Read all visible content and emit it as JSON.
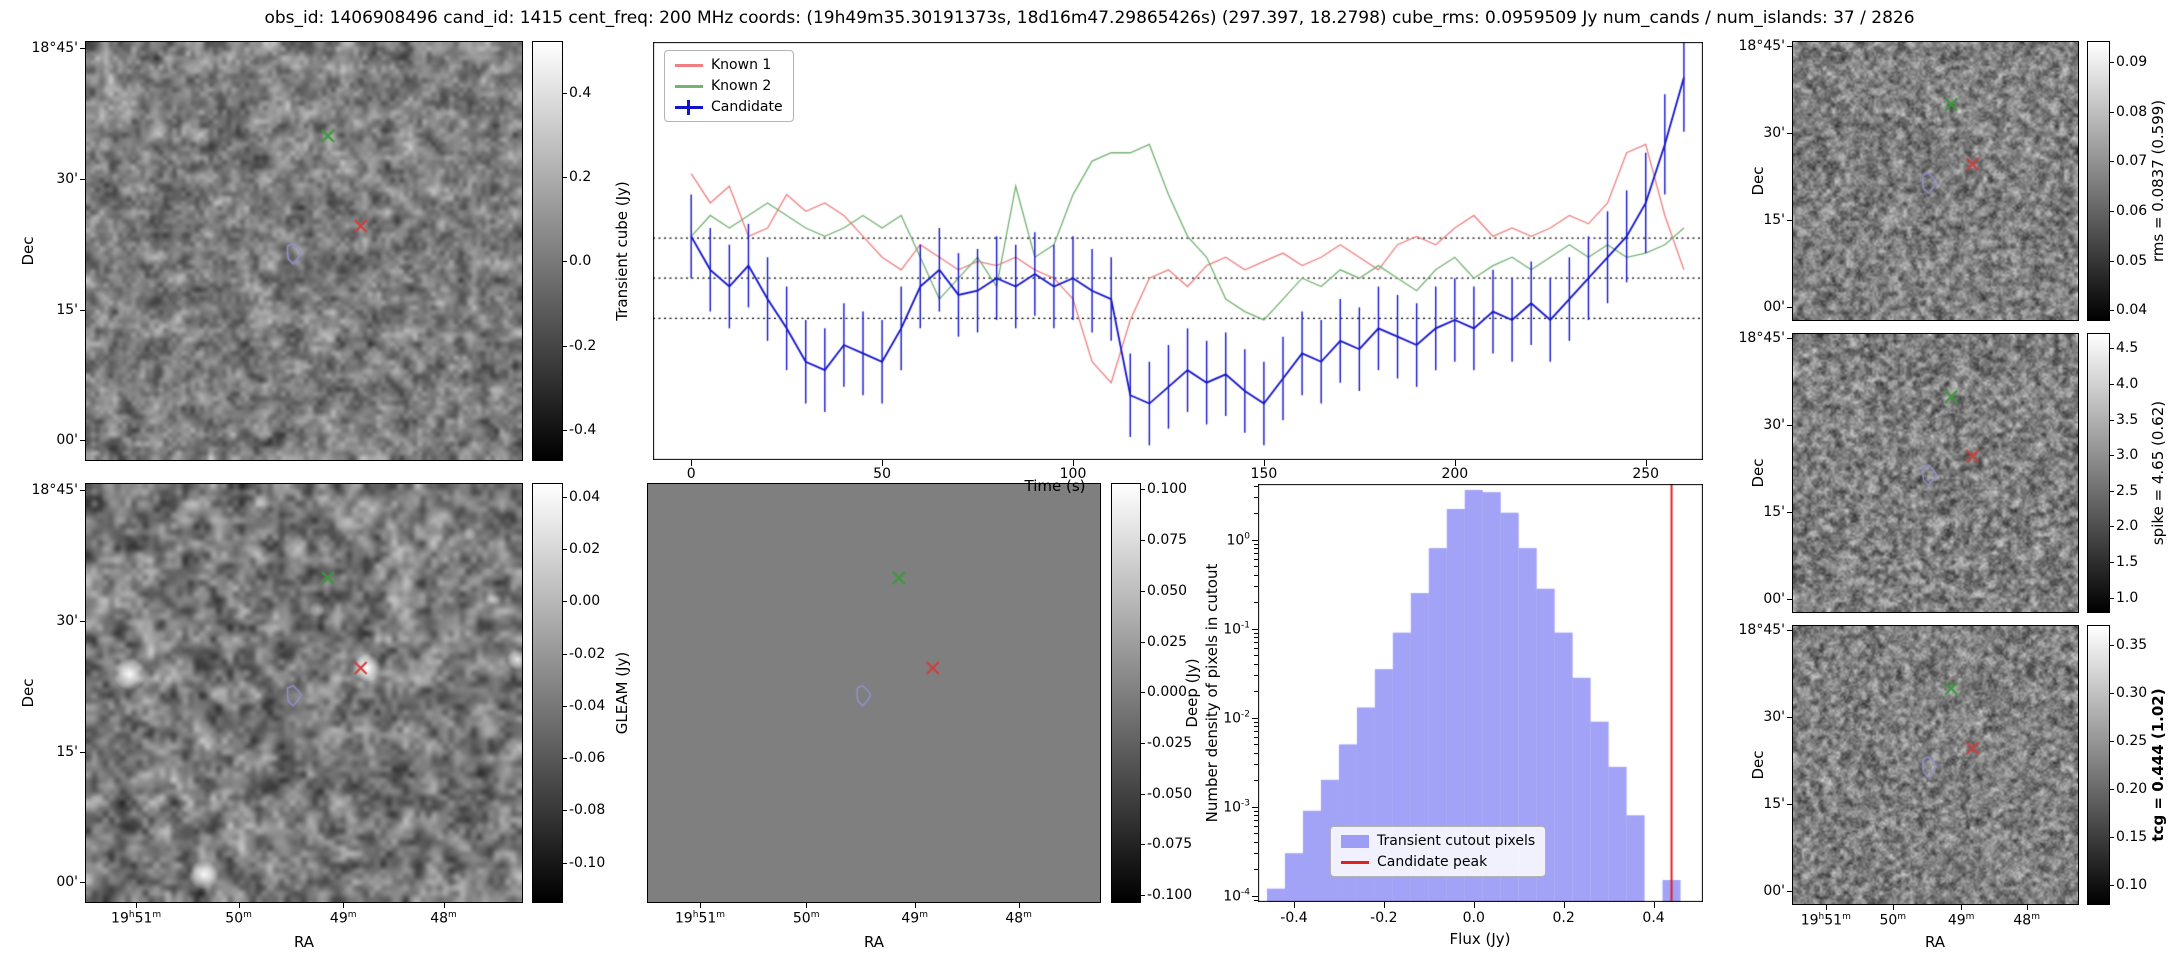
{
  "title": "obs_id: 1406908496 cand_id: 1415 cent_freq: 200 MHz coords: (19h49m35.30191373s, 18d16m47.29865426s) (297.397, 18.2798) cube_rms: 0.0959509 Jy num_cands / num_islands: 37 / 2826",
  "colors": {
    "known1": "#f08080",
    "known2": "#74b374",
    "candidate": "#1414cc",
    "histogram_fill": "#6969f0",
    "candidate_peak_line": "#e02020",
    "marker_green": "#3a9a3a",
    "marker_red": "#d43c3c",
    "contour_blue": "#9090cf"
  },
  "axes": {
    "dec_label": "Dec",
    "ra_label": "RA",
    "dec_ticks": [
      "18°45'",
      "30'",
      "15'",
      "00'"
    ],
    "ra_ticks": [
      "19h51m",
      "50m",
      "49m",
      "48m"
    ]
  },
  "markers": {
    "green_x": [
      0.555,
      0.225
    ],
    "red_x": [
      0.63,
      0.44
    ],
    "contour": [
      0.475,
      0.505
    ]
  },
  "panels": {
    "transient_cube": {
      "colorbar_label": "Transient cube (Jy)",
      "colorbar_ticks": [
        "0.4",
        "0.2",
        "0.0",
        "-0.2",
        "-0.4"
      ]
    },
    "gleam": {
      "colorbar_label": "GLEAM (Jy)",
      "colorbar_ticks": [
        "0.04",
        "0.02",
        "0.00",
        "-0.02",
        "-0.04",
        "-0.06",
        "-0.08",
        "-0.10"
      ]
    },
    "deep": {
      "colorbar_label": "Deep (Jy)",
      "colorbar_ticks": [
        "0.100",
        "0.075",
        "0.050",
        "0.025",
        "0.000",
        "-0.025",
        "-0.050",
        "-0.075",
        "-0.100"
      ]
    },
    "rms": {
      "colorbar_label": "rms = 0.0837 (0.599)",
      "colorbar_ticks": [
        "0.09",
        "0.08",
        "0.07",
        "0.06",
        "0.05",
        "0.04"
      ]
    },
    "spike": {
      "colorbar_label": "spike = 4.65 (0.62)",
      "colorbar_ticks": [
        "4.5",
        "4.0",
        "3.5",
        "3.0",
        "2.5",
        "2.0",
        "1.5",
        "1.0"
      ]
    },
    "tcg": {
      "colorbar_label": "tcg = 0.444 (1.02)",
      "colorbar_ticks": [
        "0.35",
        "0.30",
        "0.25",
        "0.20",
        "0.15",
        "0.10"
      ],
      "bold": true
    }
  },
  "chart_data": [
    {
      "type": "line",
      "title": "",
      "xlabel": "Time (s)",
      "ylabel": "",
      "xlim": [
        -10,
        265
      ],
      "ylim": [
        -0.435,
        0.565
      ],
      "x_ticks": [
        0,
        50,
        100,
        150,
        200,
        250
      ],
      "threshold_lines": [
        0.0959509,
        0,
        -0.0959509
      ],
      "legend_position": "upper left",
      "x": [
        0,
        5,
        10,
        15,
        20,
        25,
        30,
        35,
        40,
        45,
        50,
        55,
        60,
        65,
        70,
        75,
        80,
        85,
        90,
        95,
        100,
        105,
        110,
        115,
        120,
        125,
        130,
        135,
        140,
        145,
        150,
        155,
        160,
        165,
        170,
        175,
        180,
        185,
        190,
        195,
        200,
        205,
        210,
        215,
        220,
        225,
        230,
        235,
        240,
        245,
        250,
        255,
        260
      ],
      "series": [
        {
          "name": "Known 1",
          "color_key": "known1",
          "values": [
            0.25,
            0.18,
            0.22,
            0.1,
            0.12,
            0.2,
            0.16,
            0.18,
            0.15,
            0.1,
            0.05,
            0.02,
            0.08,
            0.05,
            0.02,
            0.04,
            0.03,
            0.05,
            0.02,
            0.0,
            -0.05,
            -0.2,
            -0.25,
            -0.1,
            0.0,
            0.02,
            -0.02,
            0.03,
            0.05,
            0.02,
            0.04,
            0.06,
            0.03,
            0.05,
            0.08,
            0.05,
            0.02,
            0.08,
            0.1,
            0.08,
            0.12,
            0.15,
            0.1,
            0.12,
            0.1,
            0.12,
            0.15,
            0.13,
            0.18,
            0.3,
            0.32,
            0.15,
            0.02
          ]
        },
        {
          "name": "Known 2",
          "color_key": "known2",
          "values": [
            0.1,
            0.15,
            0.12,
            0.15,
            0.18,
            0.15,
            0.12,
            0.1,
            0.12,
            0.15,
            0.12,
            0.15,
            0.05,
            -0.05,
            0.0,
            0.05,
            -0.02,
            0.22,
            0.05,
            0.08,
            0.2,
            0.28,
            0.3,
            0.3,
            0.32,
            0.2,
            0.1,
            0.05,
            -0.05,
            -0.08,
            -0.1,
            -0.05,
            0.0,
            -0.02,
            0.02,
            0.0,
            0.03,
            0.0,
            -0.03,
            0.02,
            0.05,
            0.0,
            0.03,
            0.05,
            0.02,
            0.05,
            0.08,
            0.05,
            0.08,
            0.05,
            0.06,
            0.08,
            0.12
          ]
        },
        {
          "name": "Candidate",
          "color_key": "candidate",
          "values": [
            0.1,
            0.02,
            -0.02,
            0.03,
            -0.05,
            -0.12,
            -0.2,
            -0.22,
            -0.16,
            -0.18,
            -0.2,
            -0.12,
            -0.02,
            0.02,
            -0.04,
            -0.03,
            0.0,
            -0.02,
            0.01,
            -0.02,
            0.0,
            -0.03,
            -0.05,
            -0.28,
            -0.3,
            -0.26,
            -0.22,
            -0.25,
            -0.23,
            -0.27,
            -0.3,
            -0.24,
            -0.18,
            -0.2,
            -0.15,
            -0.17,
            -0.12,
            -0.14,
            -0.16,
            -0.12,
            -0.1,
            -0.12,
            -0.08,
            -0.1,
            -0.06,
            -0.1,
            -0.05,
            0.0,
            0.05,
            0.1,
            0.18,
            0.32,
            0.48
          ],
          "errors": [
            0.1,
            0.1,
            0.1,
            0.1,
            0.1,
            0.1,
            0.1,
            0.1,
            0.1,
            0.1,
            0.1,
            0.1,
            0.1,
            0.1,
            0.1,
            0.1,
            0.1,
            0.1,
            0.1,
            0.1,
            0.1,
            0.1,
            0.1,
            0.1,
            0.1,
            0.1,
            0.1,
            0.1,
            0.1,
            0.1,
            0.1,
            0.1,
            0.1,
            0.1,
            0.1,
            0.1,
            0.1,
            0.1,
            0.1,
            0.1,
            0.1,
            0.1,
            0.1,
            0.1,
            0.1,
            0.1,
            0.1,
            0.1,
            0.11,
            0.11,
            0.12,
            0.12,
            0.13
          ]
        }
      ]
    },
    {
      "type": "bar",
      "yscale": "log",
      "xlabel": "Flux (Jy)",
      "ylabel": "Number density of pixels in cutout",
      "xlim": [
        -0.48,
        0.51
      ],
      "ylim": [
        8.5e-05,
        4.2
      ],
      "x_ticks": [
        "-0.4",
        "-0.2",
        "0.0",
        "0.2",
        "0.4"
      ],
      "y_tick_exponents": [
        0,
        -1,
        -2,
        -3,
        -4
      ],
      "bin_width": 0.04,
      "bin_centers": [
        -0.44,
        -0.4,
        -0.36,
        -0.32,
        -0.28,
        -0.24,
        -0.2,
        -0.16,
        -0.12,
        -0.08,
        -0.04,
        0.0,
        0.04,
        0.08,
        0.12,
        0.16,
        0.2,
        0.24,
        0.28,
        0.32,
        0.36,
        0.4,
        0.44
      ],
      "values": [
        0.00012,
        0.0003,
        0.0009,
        0.002,
        0.005,
        0.013,
        0.035,
        0.09,
        0.25,
        0.8,
        2.2,
        3.6,
        3.4,
        2.0,
        0.8,
        0.28,
        0.09,
        0.028,
        0.009,
        0.0028,
        0.0008,
        0,
        0.00015
      ],
      "candidate_peak": 0.44,
      "legend": [
        "Transient cutout pixels",
        "Candidate peak"
      ]
    }
  ]
}
